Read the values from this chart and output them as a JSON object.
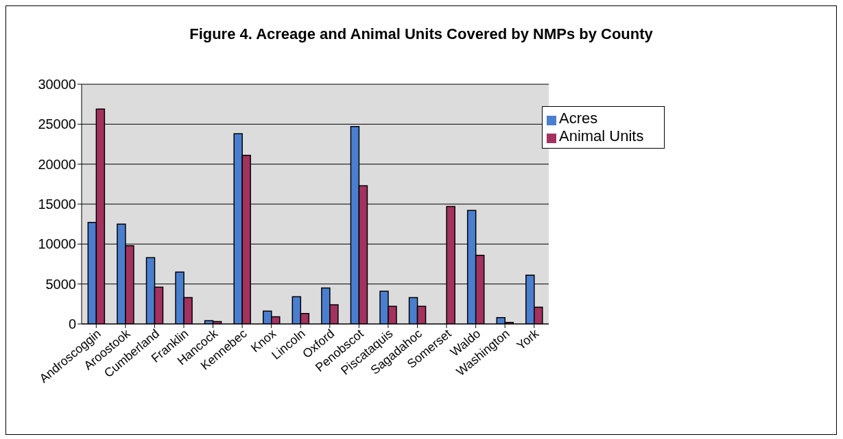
{
  "chart_data": {
    "type": "bar",
    "title": "Figure 4. Acreage and Animal Units Covered by NMPs by County",
    "categories": [
      "Androscoggin",
      "Aroostook",
      "Cumberland",
      "Franklin",
      "Hancock",
      "Kennebec",
      "Knox",
      "Lincoln",
      "Oxford",
      "Penobscot",
      "Piscataquis",
      "Sagadahoc",
      "Somerset",
      "Waldo",
      "Washington",
      "York"
    ],
    "series": [
      {
        "name": "Acres",
        "color": "#4a7fcf",
        "values": [
          12700,
          12500,
          8300,
          6500,
          400,
          23800,
          1600,
          3400,
          4500,
          24700,
          4100,
          3300,
          null,
          14200,
          800,
          6100
        ]
      },
      {
        "name": "Animal Units",
        "color": "#a3325e",
        "values": [
          26900,
          9800,
          4600,
          3300,
          300,
          21100,
          900,
          1300,
          2400,
          17300,
          2200,
          2200,
          14700,
          8600,
          200,
          2100
        ]
      }
    ],
    "ylim": [
      0,
      30000
    ],
    "yticks": [
      0,
      5000,
      10000,
      15000,
      20000,
      25000,
      30000
    ],
    "grid": "y",
    "legend": "top right"
  }
}
